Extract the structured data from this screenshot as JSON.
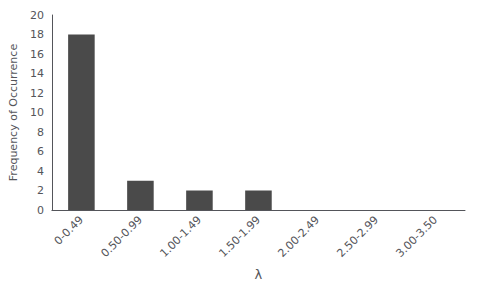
{
  "chart_data": {
    "type": "bar",
    "categories": [
      "0-0.49",
      "0.50-0.99",
      "1.00-1.49",
      "1.50-1.99",
      "2.00-2.49",
      "2.50-2.99",
      "3.00-3.50"
    ],
    "values": [
      18,
      3,
      2,
      2,
      0,
      0,
      0
    ],
    "color": "#4a4a4a",
    "xlabel": "λ",
    "ylabel": "Frequency of Occurrence",
    "ylim": [
      0,
      20
    ],
    "yticks": [
      0,
      2,
      4,
      6,
      8,
      10,
      12,
      14,
      16,
      18,
      20
    ],
    "grid": false
  }
}
